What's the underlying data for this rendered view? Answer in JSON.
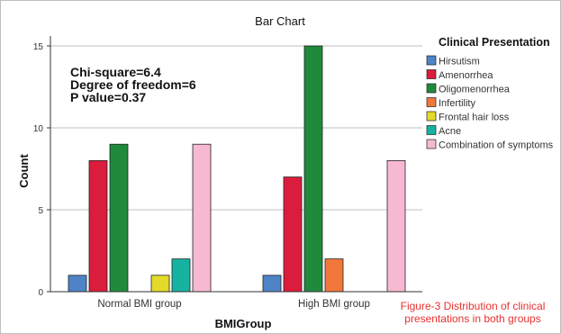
{
  "chart_data": {
    "type": "bar",
    "title": "Bar Chart",
    "xlabel": "BMIGroup",
    "ylabel": "Count",
    "categories": [
      "Normal BMI group",
      "High BMI group"
    ],
    "ylim": [
      0,
      15
    ],
    "yticks": [
      "0",
      "5",
      "10",
      "15"
    ],
    "grid": true,
    "legend_title": "Clinical Presentation",
    "legend_position": "right",
    "series": [
      {
        "name": "Hirsutism",
        "color": "#4e83c6",
        "values": [
          1,
          1
        ]
      },
      {
        "name": "Amenorrhea",
        "color": "#dc1c3c",
        "values": [
          8,
          7
        ]
      },
      {
        "name": "Oligomenorrhea",
        "color": "#1f8a3c",
        "values": [
          9,
          15
        ]
      },
      {
        "name": "Infertility",
        "color": "#f2773a",
        "values": [
          0,
          2
        ]
      },
      {
        "name": "Frontal hair loss",
        "color": "#e4da2a",
        "values": [
          1,
          0
        ]
      },
      {
        "name": "Acne",
        "color": "#17b3a2",
        "values": [
          2,
          0
        ]
      },
      {
        "name": "Combination of symptoms",
        "color": "#f7b8d2",
        "values": [
          9,
          8
        ]
      }
    ],
    "annotation": [
      "Chi-square=6.4",
      "Degree of freedom=6",
      "P value=0.37"
    ]
  },
  "caption": "Figure-3 Distribution of clinical presentations in both groups"
}
